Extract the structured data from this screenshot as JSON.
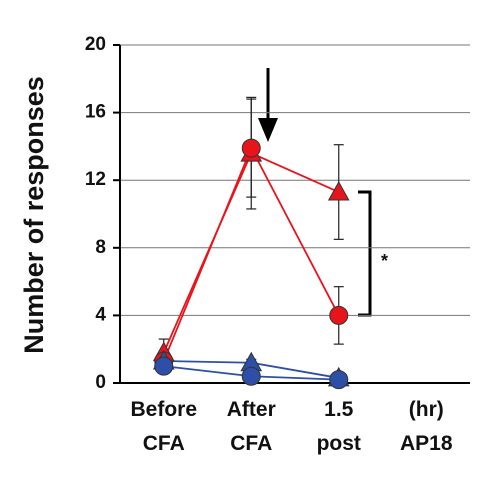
{
  "chart_data": {
    "type": "line",
    "y_label": "Number of responses",
    "categories": [
      [
        "Before",
        "CFA"
      ],
      [
        "After",
        "CFA"
      ],
      [
        "1.5",
        "post"
      ],
      [
        "(hr)",
        "AP18"
      ]
    ],
    "ylim": [
      0,
      20
    ],
    "yticks": [
      0,
      4,
      8,
      12,
      16,
      20
    ],
    "grid": true,
    "annotation": "*",
    "series": [
      {
        "color": "#e8141c",
        "marker": "triangle",
        "values": [
          1.8,
          13.6,
          11.3,
          null
        ],
        "errors": [
          0.8,
          3.3,
          2.8,
          null
        ]
      },
      {
        "color": "#e8141c",
        "marker": "circle",
        "values": [
          1.3,
          13.9,
          4.0,
          null
        ],
        "errors": [
          0.5,
          2.9,
          1.7,
          null
        ]
      },
      {
        "color": "#2e4fa8",
        "marker": "triangle",
        "values": [
          1.3,
          1.2,
          0.3,
          null
        ],
        "errors": [
          0.2,
          0.2,
          0.1,
          null
        ]
      },
      {
        "color": "#2e4fa8",
        "marker": "circle",
        "values": [
          1.0,
          0.4,
          0.2,
          null
        ],
        "errors": [
          0.2,
          0.1,
          0.1,
          null
        ]
      }
    ]
  }
}
